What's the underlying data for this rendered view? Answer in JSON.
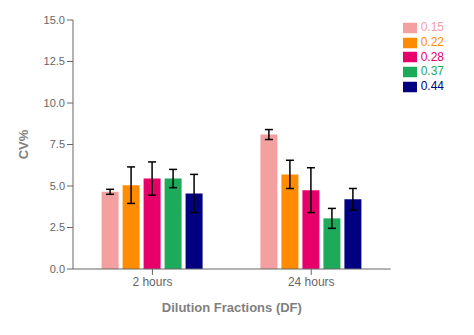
{
  "chart_data": {
    "type": "bar",
    "xlabel": "Dilution Fractions (DF)",
    "ylabel": "CV%",
    "categories": [
      "2 hours",
      "24 hours"
    ],
    "series": [
      {
        "name": "0.15",
        "color": "#F4A0A0",
        "values": [
          4.65,
          8.1
        ],
        "errors": [
          0.15,
          0.3
        ]
      },
      {
        "name": "0.22",
        "color": "#FF8C00",
        "values": [
          5.05,
          5.7
        ],
        "errors": [
          1.1,
          0.85
        ]
      },
      {
        "name": "0.28",
        "color": "#E8006A",
        "values": [
          5.45,
          4.75
        ],
        "errors": [
          1.0,
          1.35
        ]
      },
      {
        "name": "0.37",
        "color": "#1DAA5A",
        "values": [
          5.45,
          3.05
        ],
        "errors": [
          0.55,
          0.6
        ]
      },
      {
        "name": "0.44",
        "color": "#000080",
        "values": [
          4.55,
          4.2
        ],
        "errors": [
          1.15,
          0.65
        ]
      }
    ],
    "ylim": [
      0.0,
      15.0
    ],
    "yticks": [
      {
        "value": 0,
        "label": "0.0"
      },
      2.5,
      {
        "value": 5,
        "label": "5.0"
      },
      7.5,
      {
        "value": 10,
        "label": "10.0"
      },
      12.5,
      {
        "value": 15,
        "label": "15.0"
      }
    ],
    "grid": false,
    "legend": "upper right"
  }
}
